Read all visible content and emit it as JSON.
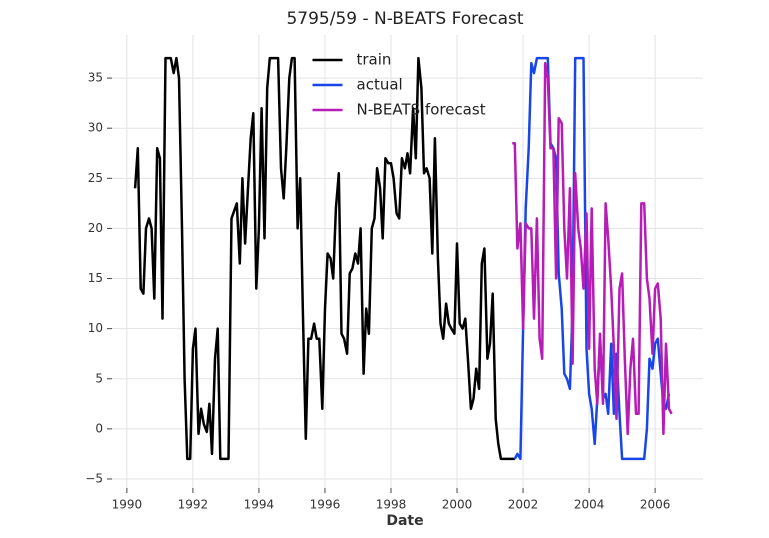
{
  "chart_data": {
    "type": "line",
    "title": "5795/59 - N-BEATS Forecast",
    "x_label": "Date",
    "xlim": [
      1989.55,
      2007.45
    ],
    "ylim": [
      -5.9,
      39.3
    ],
    "xticks": [
      1990,
      1992,
      1994,
      1996,
      1998,
      2000,
      2002,
      2004,
      2006
    ],
    "yticks": [
      {
        "value": -5,
        "label": "−5"
      },
      0,
      5,
      10,
      15,
      20,
      25,
      30,
      35
    ],
    "grid": true,
    "legend": "upper center",
    "series": [
      {
        "name": "train",
        "color": "#000000",
        "x": [
          1990.25,
          1990.33,
          1990.42,
          1990.5,
          1990.58,
          1990.67,
          1990.75,
          1990.83,
          1990.92,
          1991.0,
          1991.08,
          1991.17,
          1991.33,
          1991.42,
          1991.5,
          1991.58,
          1991.67,
          1991.75,
          1991.83,
          1991.92,
          1992.0,
          1992.08,
          1992.17,
          1992.25,
          1992.33,
          1992.42,
          1992.5,
          1992.58,
          1992.67,
          1992.75,
          1992.83,
          1993.0,
          1993.08,
          1993.17,
          1993.33,
          1993.42,
          1993.5,
          1993.58,
          1993.67,
          1993.75,
          1993.83,
          1993.92,
          1994.0,
          1994.08,
          1994.17,
          1994.25,
          1994.33,
          1994.58,
          1994.67,
          1994.75,
          1994.83,
          1994.92,
          1995.0,
          1995.08,
          1995.17,
          1995.25,
          1995.33,
          1995.42,
          1995.5,
          1995.58,
          1995.67,
          1995.75,
          1995.83,
          1995.92,
          1996.0,
          1996.08,
          1996.17,
          1996.25,
          1996.33,
          1996.42,
          1996.5,
          1996.58,
          1996.67,
          1996.75,
          1996.83,
          1996.92,
          1997.0,
          1997.08,
          1997.17,
          1997.25,
          1997.33,
          1997.42,
          1997.5,
          1997.58,
          1997.67,
          1997.75,
          1997.83,
          1997.92,
          1998.0,
          1998.08,
          1998.17,
          1998.25,
          1998.33,
          1998.42,
          1998.5,
          1998.58,
          1998.67,
          1998.75,
          1998.83,
          1998.92,
          1999.0,
          1999.08,
          1999.17,
          1999.25,
          1999.33,
          1999.42,
          1999.5,
          1999.58,
          1999.67,
          1999.75,
          1999.83,
          1999.92,
          2000.0,
          2000.08,
          2000.17,
          2000.25,
          2000.33,
          2000.42,
          2000.5,
          2000.58,
          2000.67,
          2000.75,
          2000.83,
          2000.92,
          2001.0,
          2001.08,
          2001.17,
          2001.25,
          2001.33,
          2001.5,
          2001.67,
          2001.75
        ],
        "values": [
          24,
          28,
          14,
          13.5,
          20,
          21,
          20,
          13,
          28,
          27,
          11,
          37,
          37,
          35.5,
          37,
          35,
          20,
          5,
          -3,
          -3,
          8,
          10,
          -0.5,
          2,
          0.5,
          -0.3,
          2.5,
          -2.5,
          7,
          10,
          -3,
          -3,
          -3,
          21,
          22.5,
          16.5,
          25,
          18.5,
          24,
          29,
          31.5,
          14,
          20,
          32,
          19,
          34,
          37,
          37,
          26,
          23,
          28,
          35,
          37,
          37,
          20,
          25,
          12,
          -1,
          9,
          9,
          10.5,
          9,
          9,
          2,
          12,
          17.5,
          17,
          15,
          22,
          25.5,
          9.5,
          9,
          7.5,
          15.5,
          16,
          17.5,
          16.5,
          20,
          5.5,
          12,
          9.5,
          20,
          21,
          26,
          24,
          19,
          27,
          26.5,
          26.5,
          25,
          21.5,
          21,
          27,
          26,
          27.5,
          25.5,
          32,
          27,
          37,
          34,
          25.5,
          26,
          25,
          17.5,
          29,
          17,
          10.5,
          9,
          12.5,
          10.5,
          10,
          9.5,
          18.5,
          10.5,
          10,
          11,
          7,
          2,
          3,
          6,
          4,
          16.5,
          18,
          7,
          8.5,
          13.5,
          1,
          -1.5,
          -3,
          -3,
          -3,
          -3
        ]
      },
      {
        "name": "actual",
        "color": "#1846e8",
        "x": [
          2001.75,
          2001.83,
          2001.92,
          2002.0,
          2002.08,
          2002.17,
          2002.25,
          2002.33,
          2002.42,
          2002.5,
          2002.58,
          2002.67,
          2002.75,
          2002.83,
          2002.92,
          2003.0,
          2003.08,
          2003.17,
          2003.25,
          2003.33,
          2003.42,
          2003.5,
          2003.58,
          2003.75,
          2003.83,
          2003.92,
          2004.0,
          2004.08,
          2004.17,
          2004.25,
          2004.33,
          2004.42,
          2004.5,
          2004.58,
          2004.67,
          2004.75,
          2004.83,
          2004.92,
          2005.0,
          2005.25,
          2005.5,
          2005.67,
          2005.75,
          2005.83,
          2005.92,
          2006.0,
          2006.08,
          2006.17,
          2006.25,
          2006.33,
          2006.42
        ],
        "values": [
          -3,
          -2.5,
          -3,
          10,
          22,
          28,
          36.5,
          35.5,
          37,
          37,
          37,
          37,
          37,
          28.5,
          28,
          27,
          15.5,
          12,
          5.5,
          5,
          4,
          12,
          37,
          37,
          37,
          8,
          3.5,
          2,
          -1.5,
          3,
          9,
          3,
          3.5,
          1.5,
          8.5,
          1.5,
          7.5,
          1.5,
          -3,
          -3,
          -3,
          -3,
          0,
          7,
          6,
          8.5,
          9,
          5.5,
          2.5,
          2,
          3.5
        ]
      },
      {
        "name": "N-BEATS forecast",
        "color": "#b61cb6",
        "x": [
          2001.67,
          2001.75,
          2001.83,
          2001.92,
          2002.0,
          2002.08,
          2002.17,
          2002.25,
          2002.33,
          2002.42,
          2002.5,
          2002.58,
          2002.67,
          2002.75,
          2002.83,
          2002.92,
          2003.0,
          2003.08,
          2003.17,
          2003.25,
          2003.33,
          2003.42,
          2003.5,
          2003.58,
          2003.67,
          2003.75,
          2003.83,
          2003.92,
          2004.0,
          2004.08,
          2004.17,
          2004.25,
          2004.33,
          2004.42,
          2004.5,
          2004.58,
          2004.67,
          2004.75,
          2004.83,
          2004.92,
          2005.0,
          2005.08,
          2005.17,
          2005.25,
          2005.33,
          2005.42,
          2005.5,
          2005.58,
          2005.67,
          2005.75,
          2005.83,
          2005.92,
          2006.0,
          2006.08,
          2006.17,
          2006.25,
          2006.33,
          2006.42,
          2006.5
        ],
        "values": [
          28.5,
          28.5,
          18,
          20.5,
          10,
          20.5,
          20,
          20,
          11,
          21,
          9,
          7,
          36.5,
          35,
          28,
          28,
          15,
          31,
          30.5,
          20,
          15,
          24,
          6.5,
          25.5,
          20,
          18,
          14,
          21.5,
          8,
          22,
          6,
          2.5,
          9.5,
          2.5,
          22.5,
          19,
          14,
          8,
          1,
          14,
          15.5,
          7,
          -0.5,
          6,
          9,
          1.5,
          1.5,
          22.5,
          22.5,
          15,
          13,
          7.5,
          14,
          14.5,
          11,
          -0.5,
          8.5,
          2,
          1.5
        ]
      }
    ]
  }
}
